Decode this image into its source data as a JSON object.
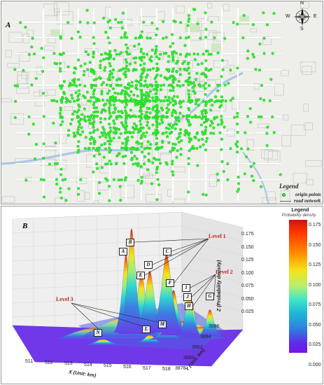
{
  "panel_a": {
    "label": "A",
    "legend": {
      "title": "Legend",
      "items": [
        {
          "label": "origin points",
          "symbol": "green-dot",
          "color": "#2ef02e"
        },
        {
          "label": "road network",
          "symbol": "grey-line",
          "color": "#666666"
        }
      ]
    },
    "compass": {
      "n": "N",
      "s": "S",
      "e": "E",
      "w": "W"
    },
    "colors": {
      "points": "#2ef02e",
      "background": "#eeeeea",
      "road": "#ffffff",
      "water": "#a9c6e6",
      "park": "#cfe8c4"
    }
  },
  "panel_b": {
    "label": "B",
    "colorbar": {
      "title": "Legend",
      "subtitle": "Probability density",
      "ticks": [
        "0.175",
        "0.150",
        "0.125",
        "0.100",
        "0.075",
        "0.050",
        "0.025",
        "0.000"
      ]
    },
    "z_axis": {
      "label": "Z (Probability density)",
      "ticks": [
        "0.175",
        "0.150",
        "0.125",
        "0.100",
        "0.075",
        "0.050",
        "0.025"
      ]
    },
    "x_axis": {
      "label": "X (Unit: km)",
      "ticks": [
        "511",
        "512",
        "513",
        "514",
        "515",
        "516",
        "517",
        "518"
      ]
    },
    "y_axis": {
      "label": "Y (Unit: km)",
      "ticks": [
        "3878",
        "3880",
        "3882",
        "3884",
        "3886"
      ]
    },
    "levels": [
      {
        "label": "Level 1",
        "peaks": [
          "B",
          "C",
          "D",
          "E",
          "F"
        ]
      },
      {
        "label": "Level 2",
        "peaks": [
          "I",
          "J",
          "H",
          "G"
        ]
      },
      {
        "label": "Level 3",
        "peaks": [
          "N",
          "L",
          "M"
        ]
      }
    ],
    "peaks": [
      {
        "id": "A",
        "density": 0.13
      },
      {
        "id": "B",
        "density": 0.175
      },
      {
        "id": "C",
        "density": 0.13
      },
      {
        "id": "D",
        "density": 0.1
      },
      {
        "id": "E",
        "density": 0.1
      },
      {
        "id": "F",
        "density": 0.075
      },
      {
        "id": "I",
        "density": 0.07
      },
      {
        "id": "J",
        "density": 0.06
      },
      {
        "id": "H",
        "density": 0.05
      },
      {
        "id": "G",
        "density": 0.045
      },
      {
        "id": "M",
        "density": 0.02
      },
      {
        "id": "L",
        "density": 0.015
      },
      {
        "id": "N",
        "density": 0.01
      }
    ]
  }
}
